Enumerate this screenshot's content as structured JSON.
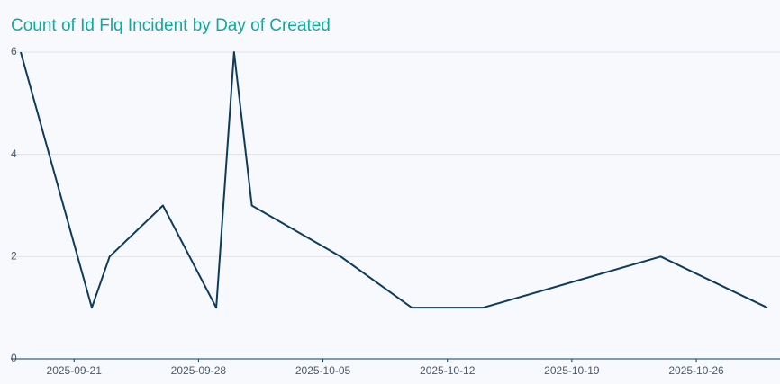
{
  "chart_data": {
    "type": "line",
    "title": "Count of Id Flq Incident by Day of Created",
    "x": [
      "2025-09-18",
      "2025-09-22",
      "2025-09-23",
      "2025-09-26",
      "2025-09-29",
      "2025-09-30",
      "2025-10-01",
      "2025-10-06",
      "2025-10-10",
      "2025-10-14",
      "2025-10-24",
      "2025-10-30"
    ],
    "series": [
      {
        "color": "#0d3b5e",
        "values": [
          6,
          1,
          2,
          3,
          1,
          6,
          3,
          2,
          1,
          1,
          2,
          1
        ]
      }
    ],
    "xlim": [
      "2025-09-18",
      "2025-10-30"
    ],
    "xticks": [
      "2025-09-21",
      "2025-09-28",
      "2025-10-05",
      "2025-10-12",
      "2025-10-19",
      "2025-10-26"
    ],
    "ylim": [
      0,
      6
    ],
    "yticks": [
      0,
      2,
      4,
      6
    ],
    "grid": true
  }
}
